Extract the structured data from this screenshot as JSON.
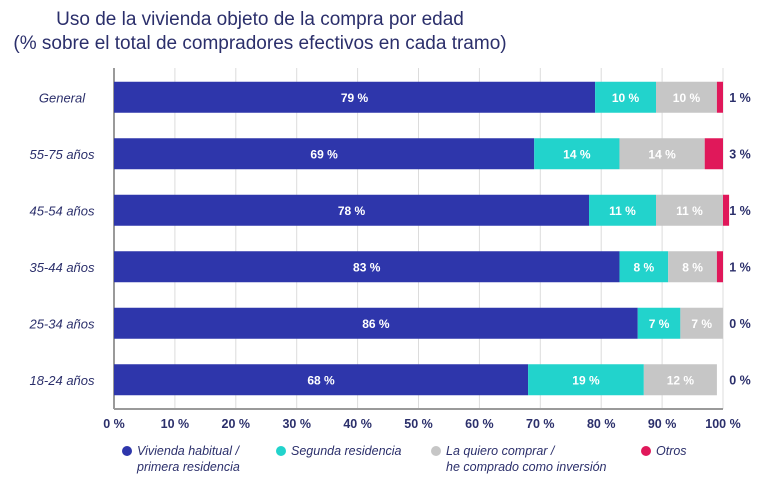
{
  "chart_data": {
    "type": "bar",
    "orientation": "horizontal",
    "stacked": true,
    "title": "Uso de la vivienda objeto de la compra por edad",
    "subtitle": "(% sobre el total de compradores efectivos en cada tramo)",
    "categories": [
      "General",
      "55-75 años",
      "45-54 años",
      "35-44 años",
      "25-34 años",
      "18-24 años"
    ],
    "series": [
      {
        "name": "Vivienda habitual / primera residencia",
        "color": "#2e36ab",
        "values": [
          79,
          69,
          78,
          83,
          86,
          68
        ]
      },
      {
        "name": "Segunda residencia",
        "color": "#22d3cc",
        "values": [
          10,
          14,
          11,
          8,
          7,
          19
        ]
      },
      {
        "name": "La quiero comprar / he comprado como inversión",
        "color": "#c6c6c6",
        "values": [
          10,
          14,
          11,
          8,
          7,
          12
        ]
      },
      {
        "name": "Otros",
        "color": "#e0185a",
        "values": [
          1,
          3,
          1,
          1,
          0,
          0
        ]
      }
    ],
    "value_labels_suffix": " %",
    "xlim": [
      0,
      100
    ],
    "xticks": [
      "0 %",
      "10 %",
      "20 %",
      "30 %",
      "40 %",
      "50 %",
      "60 %",
      "70 %",
      "80 %",
      "90 %",
      "100 %"
    ],
    "xlabel": "",
    "ylabel": "",
    "grid": true,
    "legend_position": "bottom"
  },
  "legend": [
    {
      "line1": "Vivienda habitual /",
      "line2": "primera residencia"
    },
    {
      "line1": "Segunda residencia",
      "line2": ""
    },
    {
      "line1": "La quiero comprar /",
      "line2": "he comprado como inversión"
    },
    {
      "line1": "Otros",
      "line2": ""
    }
  ]
}
